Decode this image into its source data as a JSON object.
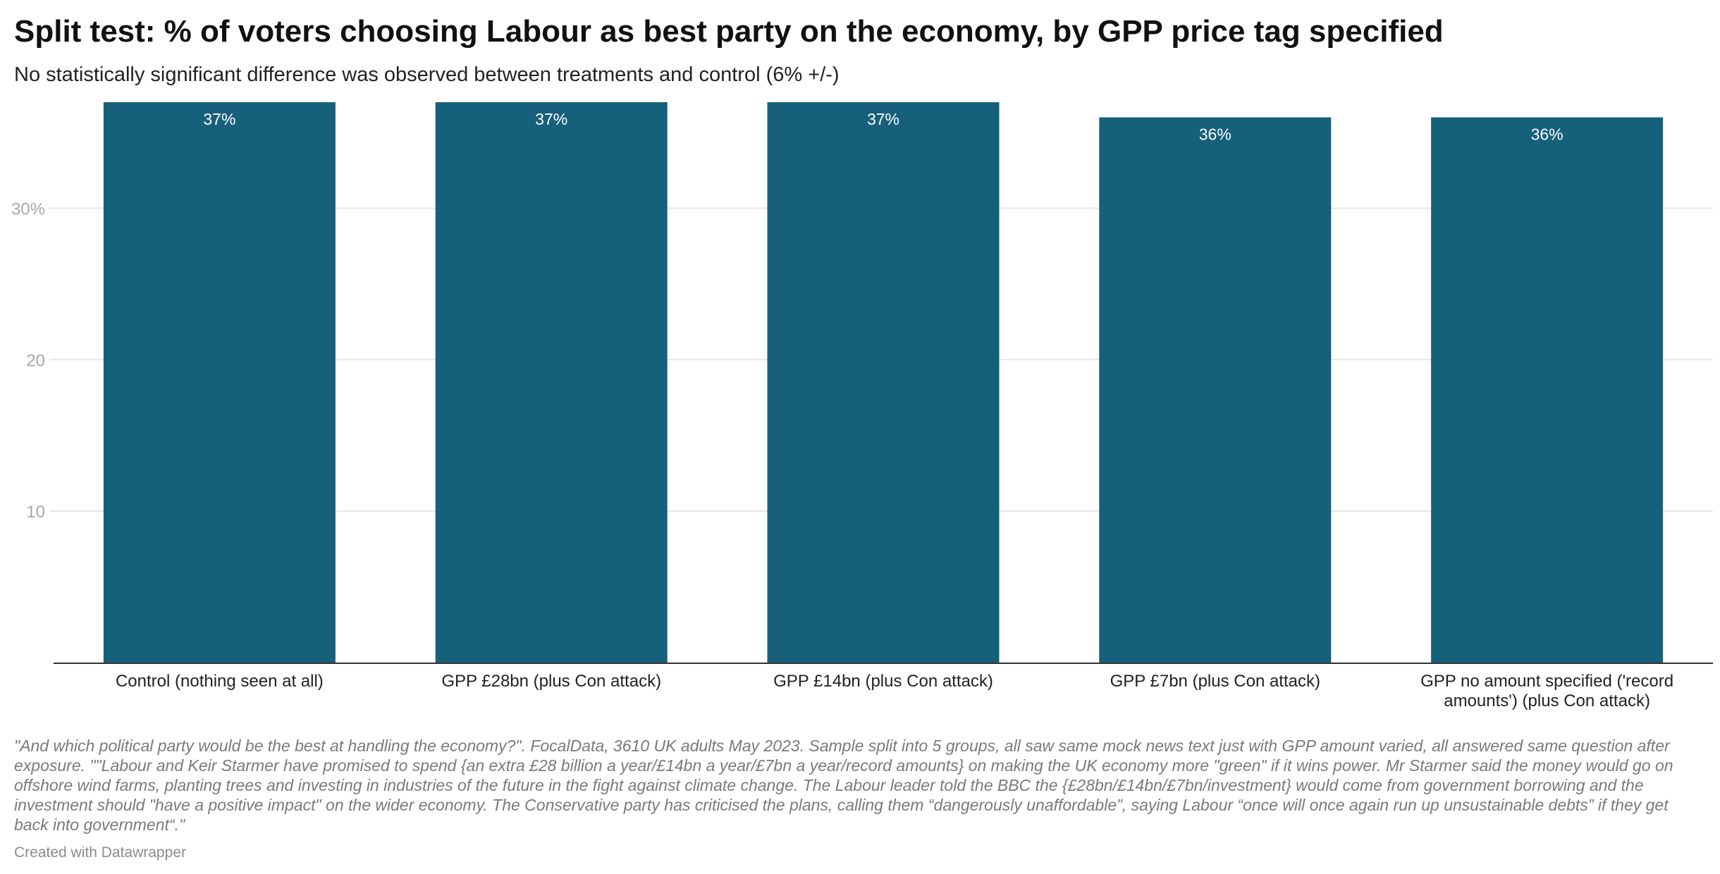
{
  "title": "Split test: % of voters choosing Labour as best party on the economy, by GPP price tag specified",
  "subtitle": "No statistically significant difference was observed between treatments and control (6% +/-)",
  "footnote": "\"And which political party would be the best at handling the economy?\". FocalData, 3610 UK adults May 2023. Sample split into 5 groups, all saw same mock news text just with GPP amount varied, all answered same question after exposure. \"\"Labour and Keir Starmer have promised to spend {an extra £28 billion a year/£14bn a year/£7bn a year/record amounts} on making the UK economy more \"green\" if it wins power. Mr Starmer said the money would go on offshore wind farms, planting trees and investing in industries of the future in the fight against climate change. The Labour leader told the BBC the {£28bn/£14bn/£7bn/investment} would come from government borrowing and the investment should \"have a positive impact\" on the wider economy. The Conservative party has criticised the plans, calling them “dangerously unaffordable”, saying Labour “once will once again run up unsustainable debts” if they get back into government“.\"",
  "credit": "Created with Datawrapper",
  "colors": {
    "bar": "#17607c",
    "grid": "#e6e6e6",
    "axis": "#333333",
    "tick_text": "#a8a8a8",
    "value_label": "#ffffff"
  },
  "chart_data": {
    "type": "bar",
    "categories": [
      "Control (nothing seen at all)",
      "GPP £28bn (plus Con attack)",
      "GPP £14bn (plus Con attack)",
      "GPP £7bn (plus Con attack)",
      "GPP no amount specified ('record amounts') (plus Con attack)"
    ],
    "values": [
      37,
      37,
      37,
      36,
      36
    ],
    "value_labels": [
      "37%",
      "37%",
      "37%",
      "36%",
      "36%"
    ],
    "ylim": [
      0,
      37
    ],
    "yticks": [
      {
        "value": 10,
        "label": "10"
      },
      {
        "value": 20,
        "label": "20"
      },
      {
        "value": 30,
        "label": "30%"
      }
    ],
    "xlabel": "",
    "ylabel": "",
    "grid": true,
    "legend": "none"
  }
}
